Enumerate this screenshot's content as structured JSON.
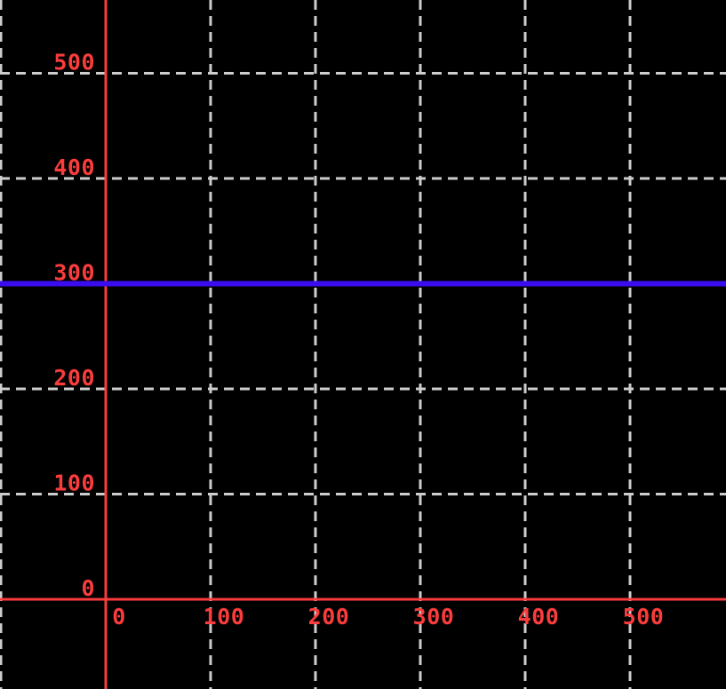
{
  "chart_data": {
    "type": "line",
    "title": "",
    "xlabel": "",
    "ylabel": "",
    "background_color": "#000000",
    "series": [
      {
        "name": "horizontal-line",
        "kind": "hline",
        "y_constant": 300,
        "color": "#3a0cf0",
        "stroke_width": 6,
        "extent": "full-plot-width"
      }
    ],
    "x_ticks": [
      0,
      100,
      200,
      300,
      400,
      500
    ],
    "y_ticks": [
      0,
      100,
      200,
      300,
      400,
      500
    ],
    "x_tick_labels": [
      "0",
      "100",
      "200",
      "300",
      "400",
      "500"
    ],
    "y_tick_labels": [
      "0",
      "100",
      "200",
      "300",
      "400",
      "500"
    ],
    "xlim": [
      -100.85,
      591.53
    ],
    "ylim": [
      -85.23,
      569.62
    ],
    "axes": {
      "color": "#fa3c3c",
      "stroke_width": 3,
      "x_axis_at_y": 0,
      "y_axis_at_x": 0
    },
    "grid": {
      "visible": true,
      "style": "dashed",
      "dash": [
        11,
        7
      ],
      "color": "#cdcdcd",
      "stroke_width": 3,
      "vertical_lines_at_x": [
        -100,
        0,
        100,
        200,
        300,
        400,
        500
      ],
      "horizontal_lines_at_y": [
        0,
        100,
        200,
        300,
        400,
        500
      ]
    },
    "tick_label_color": "#fa3c3c",
    "legend": "none"
  }
}
